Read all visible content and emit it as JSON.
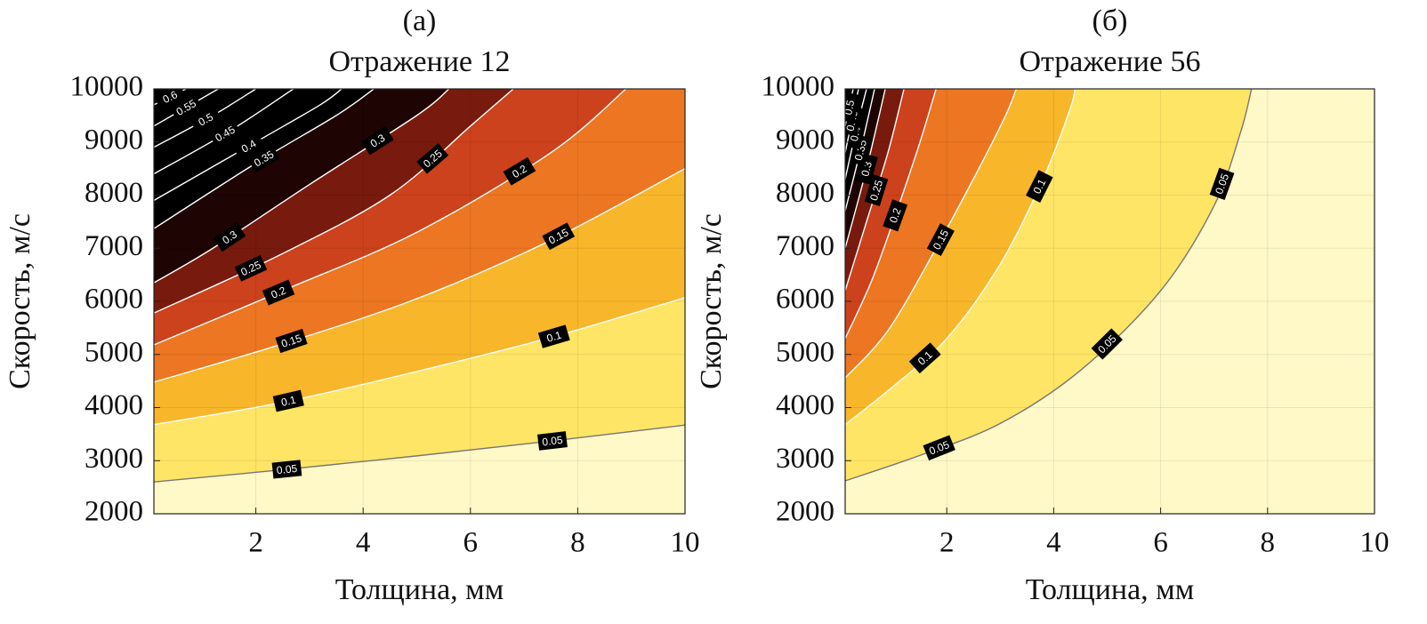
{
  "chart_data": [
    {
      "type": "contour",
      "title": "(а)",
      "subtitle": "Отражение 12",
      "x_label": "Толщина, мм",
      "y_label": "Скорость, м/с",
      "xlim": [
        0.1,
        10
      ],
      "ylim": [
        2000,
        10000
      ],
      "xticks": [
        2,
        4,
        6,
        8,
        10
      ],
      "yticks": [
        2000,
        3000,
        4000,
        5000,
        6000,
        7000,
        8000,
        9000,
        10000
      ],
      "grid": true,
      "contours": [
        {
          "level": 0.05,
          "color": "#777777",
          "x": [
            0.1,
            2.5,
            5,
            7.5,
            10
          ],
          "y": [
            2600,
            2830,
            3090,
            3370,
            3670
          ]
        },
        {
          "level": 0.1,
          "color": "#ffffff",
          "x": [
            0.1,
            2.5,
            5,
            7.5,
            10
          ],
          "y": [
            3680,
            4100,
            4680,
            5320,
            6070
          ]
        },
        {
          "level": 0.15,
          "color": "#ffffff",
          "x": [
            0.1,
            2.5,
            5,
            7.5,
            10
          ],
          "y": [
            4480,
            5200,
            6050,
            7150,
            8500
          ]
        },
        {
          "level": 0.2,
          "color": "#ffffff",
          "x": [
            0.1,
            2.5,
            5,
            7.5,
            8.9
          ],
          "y": [
            5180,
            6200,
            7300,
            8800,
            10000
          ]
        },
        {
          "level": 0.25,
          "color": "#ffffff",
          "x": [
            0.1,
            2.4,
            4.5,
            6,
            6.8
          ],
          "y": [
            5780,
            6850,
            8000,
            9300,
            10000
          ]
        },
        {
          "level": 0.3,
          "color": "#ffffff",
          "x": [
            0.1,
            1.2,
            3,
            5,
            5.6
          ],
          "y": [
            6350,
            7000,
            8200,
            9500,
            10000
          ]
        },
        {
          "level": 0.35,
          "color": "#ffffff",
          "x": [
            0.1,
            2,
            3.5,
            4.2
          ],
          "y": [
            7370,
            8600,
            9500,
            10000
          ]
        },
        {
          "level": 0.4,
          "color": "#ffffff",
          "x": [
            0.1,
            2,
            3.2,
            3.6
          ],
          "y": [
            7900,
            9000,
            9700,
            10000
          ]
        },
        {
          "level": 0.45,
          "color": "#ffffff",
          "x": [
            0.1,
            1.5,
            2.7
          ],
          "y": [
            8400,
            9200,
            10000
          ]
        },
        {
          "level": 0.5,
          "color": "#ffffff",
          "x": [
            0.1,
            1.2,
            2
          ],
          "y": [
            8900,
            9500,
            10000
          ]
        },
        {
          "level": 0.55,
          "color": "#ffffff",
          "x": [
            0.1,
            1.3
          ],
          "y": [
            9300,
            10000
          ]
        },
        {
          "level": 0.6,
          "color": "#ffffff",
          "x": [
            0.1,
            0.7
          ],
          "y": [
            9700,
            10000
          ]
        }
      ]
    },
    {
      "type": "contour",
      "title": "(б)",
      "subtitle": "Отражение 56",
      "x_label": "Толщина, мм",
      "y_label": "Скорость, м/с",
      "xlim": [
        0.1,
        10
      ],
      "ylim": [
        2000,
        10000
      ],
      "xticks": [
        2,
        4,
        6,
        8,
        10
      ],
      "yticks": [
        2000,
        3000,
        4000,
        5000,
        6000,
        7000,
        8000,
        9000,
        10000
      ],
      "grid": true,
      "contours": [
        {
          "level": 0.05,
          "color": "#777777",
          "x": [
            0.1,
            1.5,
            3,
            4.5,
            6,
            7,
            7.5,
            7.7
          ],
          "y": [
            2620,
            3100,
            3700,
            4700,
            6200,
            7800,
            9200,
            10000
          ]
        },
        {
          "level": 0.1,
          "color": "#ffffff",
          "x": [
            0.1,
            1,
            2,
            3,
            3.8,
            4.3,
            4.4
          ],
          "y": [
            3680,
            4400,
            5300,
            6700,
            8300,
            9600,
            10000
          ]
        },
        {
          "level": 0.15,
          "color": "#ffffff",
          "x": [
            0.1,
            0.9,
            1.8,
            2.6,
            3.1,
            3.3
          ],
          "y": [
            4560,
            5450,
            7000,
            8500,
            9500,
            10000
          ]
        },
        {
          "level": 0.2,
          "color": "#ffffff",
          "x": [
            0.1,
            0.6,
            1.1,
            1.5,
            1.8
          ],
          "y": [
            5300,
            6400,
            7800,
            9000,
            10000
          ]
        },
        {
          "level": 0.25,
          "color": "#ffffff",
          "x": [
            0.1,
            0.5,
            0.9,
            1.2
          ],
          "y": [
            6200,
            7500,
            8800,
            10000
          ]
        },
        {
          "level": 0.3,
          "color": "#ffffff",
          "x": [
            0.1,
            0.5,
            0.85
          ],
          "y": [
            7000,
            8500,
            10000
          ]
        },
        {
          "level": 0.35,
          "color": "#ffffff",
          "x": [
            0.1,
            0.4,
            0.65
          ],
          "y": [
            7700,
            8900,
            10000
          ]
        },
        {
          "level": 0.4,
          "color": "#ffffff",
          "x": [
            0.1,
            0.3,
            0.5
          ],
          "y": [
            8300,
            9200,
            10000
          ]
        },
        {
          "level": 0.45,
          "color": "#ffffff",
          "x": [
            0.1,
            0.35
          ],
          "y": [
            8800,
            10000
          ]
        },
        {
          "level": 0.5,
          "color": "#ffffff",
          "x": [
            0.1,
            0.25
          ],
          "y": [
            9300,
            10000
          ]
        }
      ]
    }
  ]
}
